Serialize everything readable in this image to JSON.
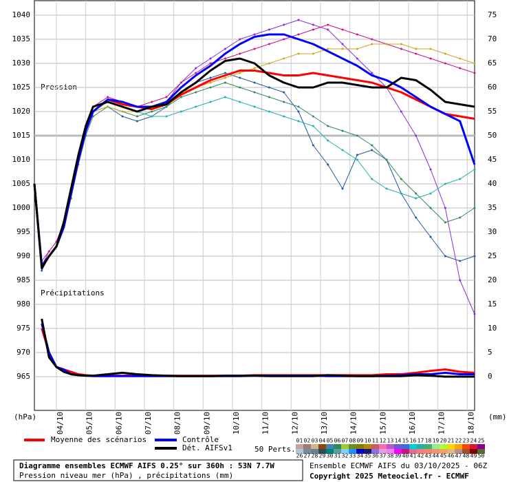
{
  "chart_data": {
    "type": "line",
    "labels": {
      "pressure": "Pression",
      "precip": "Précipitations",
      "y_unit": "(hPa)",
      "y2_unit": "(mm)"
    },
    "x": [
      0,
      6,
      12,
      18,
      24,
      30,
      36,
      42,
      48,
      60,
      72,
      84,
      96,
      108,
      120,
      132,
      144,
      156,
      168,
      180,
      192,
      204,
      216,
      228,
      240,
      252,
      264,
      276,
      288,
      300,
      312,
      324,
      336,
      348,
      360
    ],
    "xlim": [
      0,
      360
    ],
    "xticks": [
      {
        "value": 18,
        "label": "04/10"
      },
      {
        "value": 42,
        "label": "05/10"
      },
      {
        "value": 66,
        "label": "06/10"
      },
      {
        "value": 90,
        "label": "07/10"
      },
      {
        "value": 114,
        "label": "08/10"
      },
      {
        "value": 138,
        "label": "09/10"
      },
      {
        "value": 162,
        "label": "10/10"
      },
      {
        "value": 186,
        "label": "11/10"
      },
      {
        "value": 210,
        "label": "12/10"
      },
      {
        "value": 234,
        "label": "13/10"
      },
      {
        "value": 258,
        "label": "14/10"
      },
      {
        "value": 282,
        "label": "15/10"
      },
      {
        "value": 306,
        "label": "16/10"
      },
      {
        "value": 330,
        "label": "17/10"
      },
      {
        "value": 354,
        "label": "18/10"
      }
    ],
    "ylim": [
      958,
      1043
    ],
    "yticks": [
      965,
      970,
      975,
      980,
      985,
      990,
      995,
      1000,
      1005,
      1010,
      1015,
      1020,
      1025,
      1030,
      1035,
      1040
    ],
    "y2lim": [
      -7,
      78
    ],
    "y2ticks": [
      0,
      5,
      10,
      15,
      20,
      25,
      30,
      35,
      40,
      45,
      50,
      55,
      60,
      65,
      70,
      75
    ],
    "perturbations": [
      {
        "color": "#1f5aa0",
        "values": [
          1005,
          987,
          990,
          992,
          996,
          1003,
          1010,
          1016,
          1020,
          1021,
          1019,
          1018,
          1019,
          1021,
          1024,
          1026,
          1027,
          1028,
          1027,
          1026,
          1025,
          1024,
          1020,
          1013,
          1009,
          1004,
          1011,
          1012,
          1010,
          1003,
          998,
          994,
          990,
          989,
          990
        ]
      },
      {
        "color": "#8a2be2",
        "values": [
          1005,
          989,
          991,
          993,
          997,
          1004,
          1011,
          1017,
          1021,
          1023,
          1022,
          1021,
          1021,
          1022,
          1026,
          1029,
          1031,
          1033,
          1035,
          1036,
          1037,
          1038,
          1039,
          1038,
          1037,
          1034,
          1031,
          1028,
          1025,
          1020,
          1015,
          1008,
          1000,
          985,
          978
        ]
      },
      {
        "color": "#2e8b57",
        "values": [
          1005,
          988,
          990,
          992,
          996,
          1002,
          1009,
          1015,
          1019,
          1021,
          1020,
          1019,
          1020,
          1021,
          1023,
          1024,
          1025,
          1026,
          1025,
          1024,
          1023,
          1022,
          1021,
          1019,
          1017,
          1016,
          1015,
          1013,
          1010,
          1006,
          1003,
          1000,
          997,
          998,
          1000
        ]
      },
      {
        "color": "#c71585",
        "values": [
          1005,
          988,
          991,
          993,
          997,
          1004,
          1011,
          1017,
          1021,
          1023,
          1022,
          1021,
          1022,
          1023,
          1026,
          1028,
          1030,
          1031,
          1032,
          1033,
          1034,
          1035,
          1036,
          1037,
          1038,
          1037,
          1036,
          1035,
          1034,
          1033,
          1032,
          1031,
          1030,
          1029,
          1028
        ]
      },
      {
        "color": "#d2a520",
        "values": [
          1005,
          988,
          990,
          992,
          996,
          1003,
          1010,
          1016,
          1020,
          1021,
          1020,
          1020,
          1021,
          1022,
          1024,
          1025,
          1026,
          1027,
          1028,
          1029,
          1030,
          1031,
          1032,
          1032,
          1033,
          1033,
          1033,
          1034,
          1034,
          1034,
          1033,
          1033,
          1032,
          1031,
          1030
        ]
      },
      {
        "color": "#20b2aa",
        "values": [
          1005,
          988,
          990,
          992,
          996,
          1003,
          1010,
          1016,
          1020,
          1022,
          1021,
          1020,
          1019,
          1019,
          1020,
          1021,
          1022,
          1023,
          1022,
          1021,
          1020,
          1019,
          1018,
          1017,
          1014,
          1012,
          1010,
          1006,
          1004,
          1003,
          1002,
          1003,
          1005,
          1006,
          1008
        ]
      }
    ],
    "series": [
      {
        "name": "Moyenne des scénarios",
        "color": "#ff0000",
        "values": [
          1005,
          988,
          990,
          992,
          996,
          1003,
          1010,
          1016,
          1020,
          1022.5,
          1021.5,
          1021,
          1020.5,
          1021.5,
          1023.5,
          1025,
          1026.5,
          1027.5,
          1028.5,
          1028.5,
          1028,
          1027.5,
          1027.5,
          1028,
          1027.5,
          1027,
          1026.5,
          1026,
          1025,
          1024,
          1022.5,
          1021,
          1019.5,
          1019,
          1018.5
        ]
      },
      {
        "name": "Contrôle",
        "color": "#0000ff",
        "values": [
          1005,
          988,
          990,
          992,
          996,
          1003,
          1010,
          1016,
          1020,
          1022.5,
          1022,
          1021,
          1021,
          1022,
          1025,
          1027.5,
          1029.5,
          1032,
          1034,
          1035.5,
          1036,
          1036,
          1035,
          1034,
          1032.5,
          1031,
          1029.5,
          1027.5,
          1026.5,
          1025,
          1023,
          1021,
          1019.5,
          1018,
          1009
        ]
      },
      {
        "name": "Dét. AIFSv1",
        "color": "#000000",
        "values": [
          1005,
          987.5,
          990,
          992,
          997,
          1004,
          1011,
          1017,
          1021,
          1022,
          1021,
          1020,
          1021,
          1021.5,
          1024,
          1026,
          1028.5,
          1030.5,
          1031,
          1030,
          1027.5,
          1026,
          1025,
          1025,
          1026,
          1026,
          1025.5,
          1025,
          1025,
          1027,
          1026.5,
          1024.5,
          1022,
          1021.5,
          1021
        ]
      },
      {
        "axis": "y2",
        "color": "#ff0000",
        "values": [
          null,
          10,
          5,
          2,
          1.5,
          1,
          0.5,
          0.3,
          0.2,
          0.2,
          0.2,
          0.3,
          0.2,
          0.2,
          0.2,
          0.2,
          0.2,
          0.2,
          0.2,
          0.3,
          0.3,
          0.3,
          0.3,
          0.3,
          0.3,
          0.3,
          0.3,
          0.3,
          0.5,
          0.5,
          0.8,
          1.2,
          1.5,
          1,
          0.8
        ]
      },
      {
        "axis": "y2",
        "color": "#0000ff",
        "values": [
          null,
          11,
          5,
          2,
          1.5,
          0.5,
          0.3,
          0.2,
          0.1,
          0.1,
          0.1,
          0.1,
          0.1,
          0.1,
          0.1,
          0.1,
          0.1,
          0.1,
          0.1,
          0.2,
          0.2,
          0.2,
          0.2,
          0.2,
          0.1,
          0.1,
          0.1,
          0.1,
          0.2,
          0.3,
          0.5,
          0.5,
          0.8,
          0.5,
          0.5
        ]
      },
      {
        "axis": "y2",
        "color": "#000000",
        "values": [
          null,
          12,
          4,
          2,
          1,
          0.5,
          0.3,
          0.2,
          0.2,
          0.5,
          0.8,
          0.5,
          0.3,
          0.2,
          0.1,
          0.1,
          0.1,
          0.2,
          0.2,
          0.2,
          0.1,
          0.1,
          0.1,
          0.1,
          0.3,
          0.2,
          0.1,
          0.1,
          0.1,
          0.1,
          0.3,
          0.2,
          0,
          0,
          0
        ]
      }
    ],
    "members_title": "50 Perts.",
    "members": [
      "01",
      "02",
      "03",
      "04",
      "05",
      "06",
      "07",
      "08",
      "09",
      "10",
      "11",
      "12",
      "13",
      "14",
      "15",
      "16",
      "17",
      "18",
      "19",
      "20",
      "21",
      "22",
      "23",
      "24",
      "25",
      "26",
      "27",
      "28",
      "29",
      "30",
      "31",
      "32",
      "33",
      "34",
      "35",
      "36",
      "37",
      "38",
      "39",
      "40",
      "41",
      "42",
      "43",
      "44",
      "45",
      "46",
      "47",
      "48",
      "49",
      "50"
    ],
    "member_colors": [
      "#c8a0a0",
      "#a07878",
      "#d2b48c",
      "#8b4513",
      "#4682b4",
      "#2e8b57",
      "#9acd32",
      "#6b8e23",
      "#808000",
      "#b8860b",
      "#cd5c5c",
      "#ff69b4",
      "#ba55d3",
      "#6a5acd",
      "#4169e1",
      "#00ced1",
      "#20b2aa",
      "#3cb371",
      "#90ee90",
      "#adff2f",
      "#ffd700",
      "#ffa500",
      "#ff4500",
      "#dc143c",
      "#8b008b",
      "#b0c4de",
      "#778899",
      "#708090",
      "#2f4f4f",
      "#008080",
      "#5f9ea0",
      "#87cefa",
      "#1e90ff",
      "#0000cd",
      "#191970",
      "#9370db",
      "#dda0dd",
      "#ee82ee",
      "#ff00ff",
      "#c71585",
      "#db7093",
      "#f08080",
      "#fa8072",
      "#e9967a",
      "#f4a460",
      "#deb887",
      "#bc8f8f",
      "#a0522d",
      "#800000",
      "#556b2f"
    ]
  },
  "footer": {
    "title": "Diagramme ensembles ECMWF AIFS 0.25° sur 360h : 53N 7.7W",
    "subtitle": "Pression niveau mer (hPa) , précipitations (mm)",
    "run": "Ensemble ECMWF AIFS du 03/10/2025 - 06Z",
    "copyright": "Copyright 2025 Meteociel.fr - ECMWF"
  }
}
